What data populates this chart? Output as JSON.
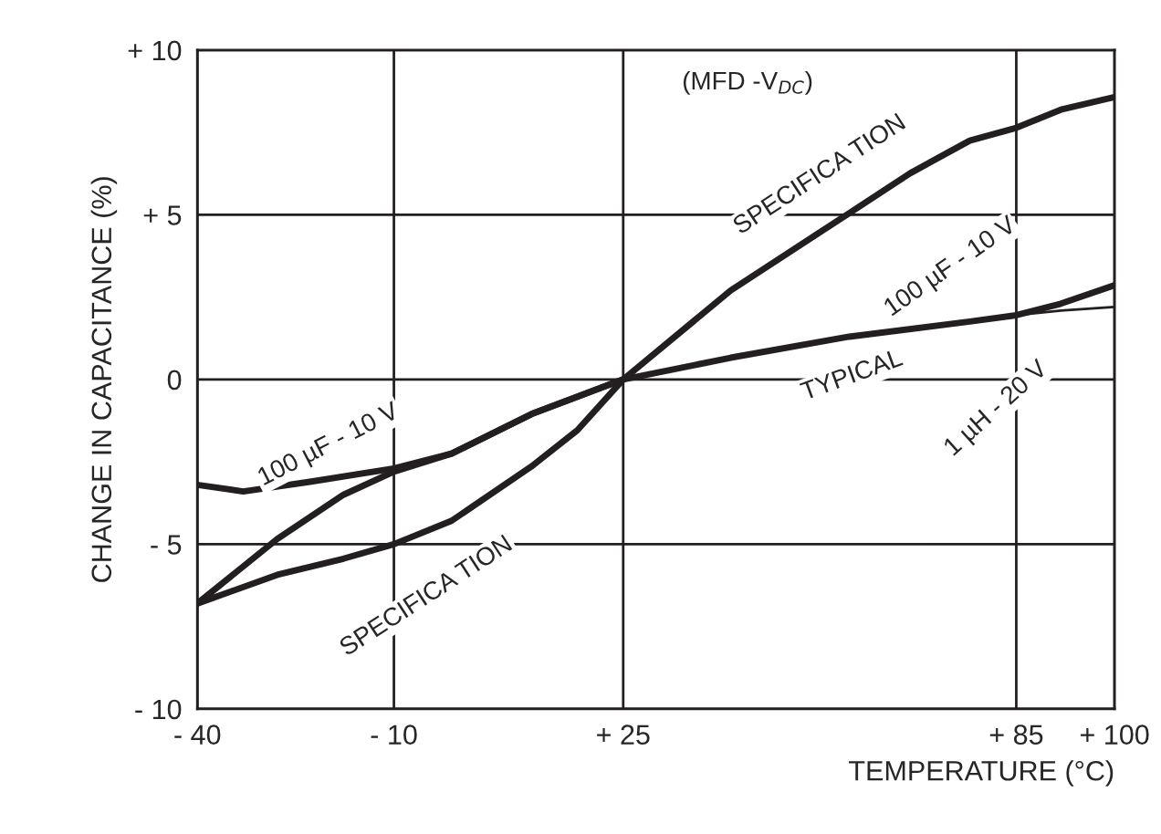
{
  "chart_data": {
    "type": "line",
    "xlabel": "TEMPERATURE (°C)",
    "ylabel": "CHANGE IN CAPACITANCE (%)",
    "x": [
      -40,
      -33,
      -22.6,
      -10,
      -1.2,
      11,
      25,
      41.4,
      59.5,
      77.9,
      85,
      91.8,
      100
    ],
    "series": [
      {
        "color": "#231f20",
        "values": [
          -3.2,
          -3.4,
          -3.1,
          -2.7,
          -2.25,
          -1.05,
          0,
          0.66,
          1.3,
          1.76,
          1.95,
          2.3,
          2.86
        ]
      },
      {
        "color": "#231f20",
        "x": [
          -40,
          -27.8,
          -17.7,
          -10,
          -1.2,
          11,
          25,
          41.4,
          59.5,
          68.8,
          77.9,
          85,
          91.8,
          100
        ],
        "values": [
          -6.8,
          -4.84,
          -3.5,
          -2.8,
          -2.25,
          -1.05,
          0,
          2.7,
          5.05,
          6.26,
          7.25,
          7.64,
          8.19,
          8.57
        ]
      },
      {
        "color": "#231f20",
        "x": [
          -40,
          -27.8,
          -17.7,
          -10,
          -1.2,
          11,
          18,
          25
        ],
        "values": [
          -6.8,
          -5.93,
          -5.44,
          -5.0,
          -4.29,
          -2.64,
          -1.54,
          0
        ]
      },
      {
        "color": "#231f20",
        "x": [
          77.9,
          85,
          91.8,
          100
        ],
        "values": [
          1.76,
          1.95,
          2.09,
          2.2
        ]
      }
    ],
    "xlim": [
      -40,
      100
    ],
    "ylim": [
      -10,
      10
    ],
    "xticks": [
      {
        "value": -40,
        "label": "- 40"
      },
      {
        "value": -10,
        "label": "- 10"
      },
      {
        "value": 25,
        "label": "+ 25"
      },
      {
        "value": 85,
        "label": "+ 85"
      },
      {
        "value": 100,
        "label": "+ 100"
      }
    ],
    "yticks": [
      {
        "value": -10,
        "label": "- 10"
      },
      {
        "value": -5,
        "label": "- 5"
      },
      0,
      {
        "value": 5,
        "label": "+ 5"
      },
      {
        "value": 10,
        "label": "+ 10"
      }
    ],
    "grid": true,
    "marker": "none",
    "line_style": "solid",
    "annotations": [
      "(MFD -V$_{DC}$)",
      "100 µF - 10 V",
      "SPECIFICA TION",
      "SPECIFICA TION",
      "100 µF - 10 V",
      "TYPICAL",
      "1 µH - 20 V"
    ]
  }
}
